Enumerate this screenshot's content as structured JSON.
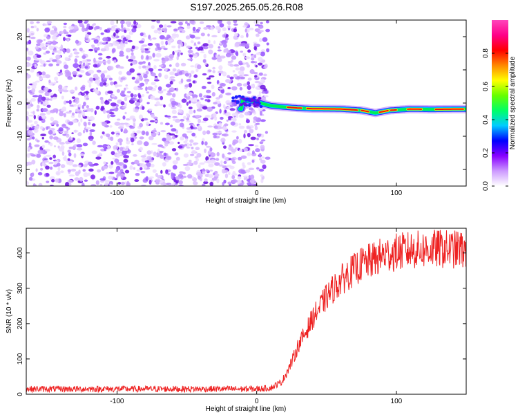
{
  "title": "S197.2025.265.05.26.R08",
  "chart_data": [
    {
      "type": "heatmap",
      "id": "spectrogram",
      "xlabel": "Height of straight line (km)",
      "ylabel": "Frequency (Hz)",
      "xlim": [
        -165,
        150
      ],
      "ylim": [
        -25,
        25
      ],
      "xticks": [
        -100,
        0,
        100
      ],
      "yticks": [
        -20,
        -10,
        0,
        10,
        20
      ],
      "noise_region_x": [
        -165,
        5
      ],
      "signal_track": [
        {
          "x": -10,
          "freq": 1.0
        },
        {
          "x": 0,
          "freq": 0.3
        },
        {
          "x": 10,
          "freq": -0.8
        },
        {
          "x": 20,
          "freq": -1.2
        },
        {
          "x": 30,
          "freq": -1.5
        },
        {
          "x": 40,
          "freq": -1.7
        },
        {
          "x": 60,
          "freq": -1.8
        },
        {
          "x": 75,
          "freq": -2.2
        },
        {
          "x": 85,
          "freq": -3.0
        },
        {
          "x": 95,
          "freq": -2.2
        },
        {
          "x": 110,
          "freq": -1.8
        },
        {
          "x": 125,
          "freq": -1.9
        },
        {
          "x": 150,
          "freq": -1.8
        }
      ],
      "colorbar": {
        "label": "Normalized spectral amplitude",
        "ticks": [
          "0.0",
          "0.2",
          "0.4",
          "0.6",
          "0.8"
        ],
        "tick_values": [
          0,
          0.2,
          0.4,
          0.6,
          0.8
        ],
        "range": [
          0,
          1
        ],
        "colors": [
          "#ffffff",
          "#cc99ff",
          "#8800ff",
          "#0000ff",
          "#00ccff",
          "#00ff66",
          "#66ff00",
          "#ffff00",
          "#ff8800",
          "#ff0000",
          "#ff0088",
          "#ff44bb"
        ]
      }
    },
    {
      "type": "line",
      "id": "snr",
      "xlabel": "Height of straight line (km)",
      "ylabel": "SNR (10 * v/v)",
      "xlim": [
        -165,
        150
      ],
      "ylim": [
        0,
        470
      ],
      "xticks": [
        -100,
        0,
        100
      ],
      "yticks": [
        0,
        100,
        200,
        300,
        400
      ],
      "color": "#ee2222",
      "series": [
        {
          "name": "SNR",
          "points": [
            [
              -165,
              15
            ],
            [
              -100,
              15
            ],
            [
              -50,
              15
            ],
            [
              0,
              15
            ],
            [
              10,
              18
            ],
            [
              18,
              35
            ],
            [
              25,
              90
            ],
            [
              30,
              140
            ],
            [
              35,
              175
            ],
            [
              40,
              215
            ],
            [
              45,
              245
            ],
            [
              50,
              275
            ],
            [
              55,
              300
            ],
            [
              60,
              320
            ],
            [
              65,
              340
            ],
            [
              70,
              352
            ],
            [
              75,
              368
            ],
            [
              80,
              375
            ],
            [
              85,
              383
            ],
            [
              90,
              393
            ],
            [
              95,
              398
            ],
            [
              100,
              402
            ],
            [
              110,
              408
            ],
            [
              120,
              410
            ],
            [
              130,
              412
            ],
            [
              140,
              410
            ],
            [
              150,
              410
            ]
          ]
        }
      ]
    }
  ]
}
